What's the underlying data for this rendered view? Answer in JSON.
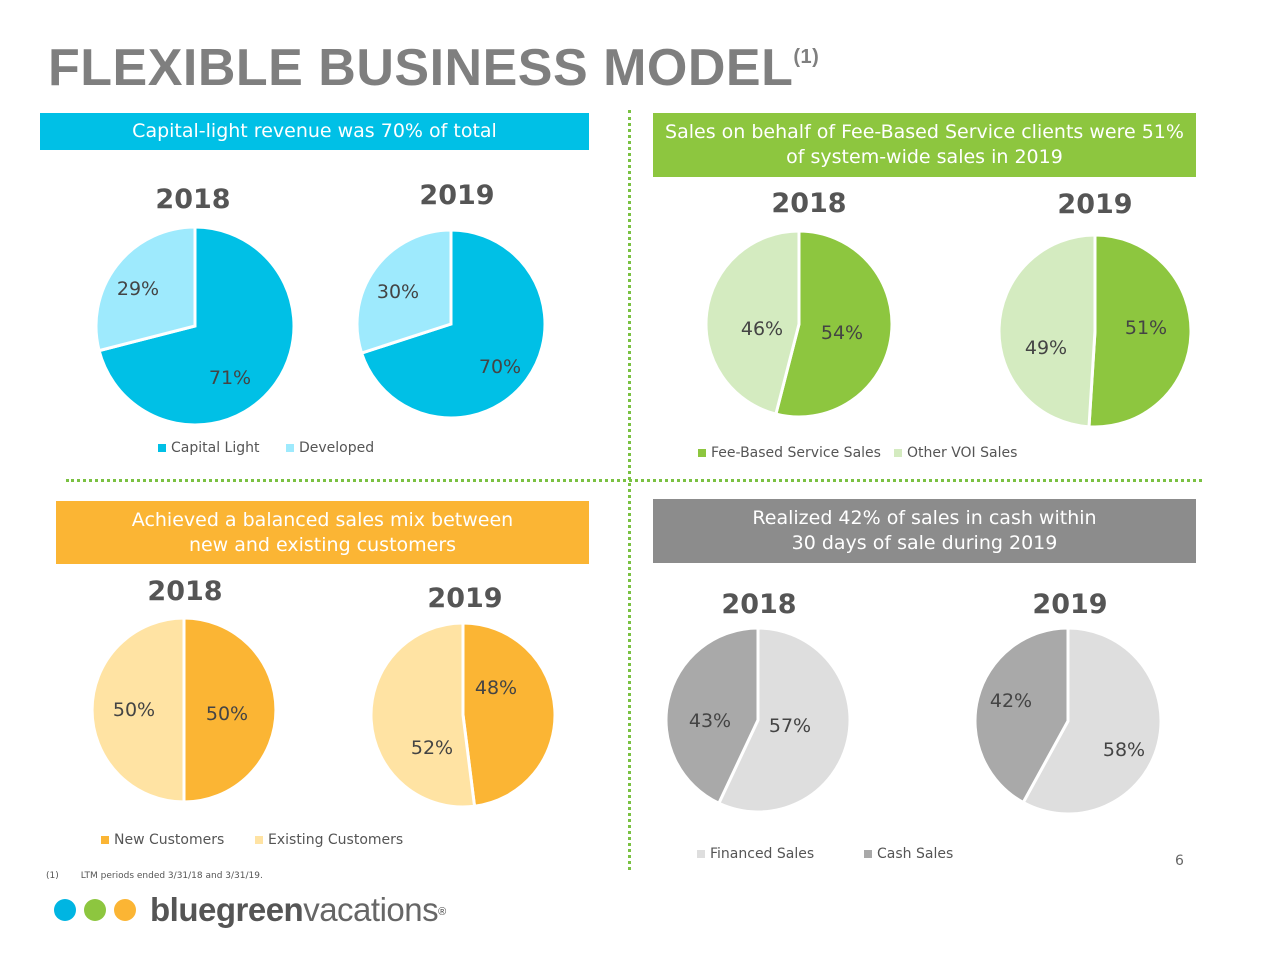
{
  "title": "FLEXIBLE BUSINESS MODEL",
  "title_footnote": "(1)",
  "colors": {
    "cyan": "#00c0e6",
    "light_cyan": "#9eeafd",
    "green": "#8dc63f",
    "light_green": "#d4ebc0",
    "orange": "#fbb534",
    "light_orange": "#ffe3a3",
    "dark_gray": "#a9a9a9",
    "light_gray": "#dedede",
    "banner_gray": "#8c8c8c"
  },
  "banners": [
    {
      "id": "capital",
      "lines": [
        "Capital-light revenue was 70% of total"
      ]
    },
    {
      "id": "fee",
      "lines": [
        "Sales on behalf of Fee-Based Service clients were 51%",
        "of system-wide sales in 2019"
      ]
    },
    {
      "id": "mix",
      "lines": [
        "Achieved a balanced sales mix between",
        "new and existing customers"
      ]
    },
    {
      "id": "cash",
      "lines": [
        "Realized 42% of sales in cash within",
        "30 days of sale during 2019"
      ]
    }
  ],
  "chart_data": [
    {
      "type": "pie",
      "title": "2018",
      "series": [
        {
          "name": "Capital Light",
          "value": 71,
          "label": "71%"
        },
        {
          "name": "Developed",
          "value": 29,
          "label": "29%"
        }
      ]
    },
    {
      "type": "pie",
      "title": "2019",
      "series": [
        {
          "name": "Capital Light",
          "value": 70,
          "label": "70%"
        },
        {
          "name": "Developed",
          "value": 30,
          "label": "30%"
        }
      ]
    },
    {
      "type": "pie",
      "title": "2018",
      "series": [
        {
          "name": "Fee-Based Service Sales",
          "value": 54,
          "label": "54%"
        },
        {
          "name": "Other VOI Sales",
          "value": 46,
          "label": "46%"
        }
      ]
    },
    {
      "type": "pie",
      "title": "2019",
      "series": [
        {
          "name": "Fee-Based Service Sales",
          "value": 51,
          "label": "51%"
        },
        {
          "name": "Other VOI Sales",
          "value": 49,
          "label": "49%"
        }
      ]
    },
    {
      "type": "pie",
      "title": "2018",
      "series": [
        {
          "name": "New Customers",
          "value": 50,
          "label": "50%"
        },
        {
          "name": "Existing Customers",
          "value": 50,
          "label": "50%"
        }
      ]
    },
    {
      "type": "pie",
      "title": "2019",
      "series": [
        {
          "name": "New Customers",
          "value": 48,
          "label": "48%"
        },
        {
          "name": "Existing Customers",
          "value": 52,
          "label": "52%"
        }
      ]
    },
    {
      "type": "pie",
      "title": "2018",
      "series": [
        {
          "name": "Financed Sales",
          "value": 57,
          "label": "57%"
        },
        {
          "name": "Cash Sales",
          "value": 43,
          "label": "43%"
        }
      ]
    },
    {
      "type": "pie",
      "title": "2019",
      "series": [
        {
          "name": "Financed Sales",
          "value": 58,
          "label": "58%"
        },
        {
          "name": "Cash Sales",
          "value": 42,
          "label": "42%"
        }
      ]
    }
  ],
  "legends": [
    [
      "Capital Light",
      "Developed"
    ],
    [
      "Fee-Based Service Sales",
      "Other VOI Sales"
    ],
    [
      "New Customers",
      "Existing Customers"
    ],
    [
      "Financed Sales",
      "Cash Sales"
    ]
  ],
  "footnote": {
    "num": "(1)",
    "text": "LTM periods ended 3/31/18 and 3/31/19."
  },
  "page_number": "6",
  "logo": {
    "bold": "bluegreen",
    "light": "vacations",
    "mark": "®",
    "dot_colors": [
      "#00b5e2",
      "#8dc63f",
      "#fbb534"
    ]
  }
}
